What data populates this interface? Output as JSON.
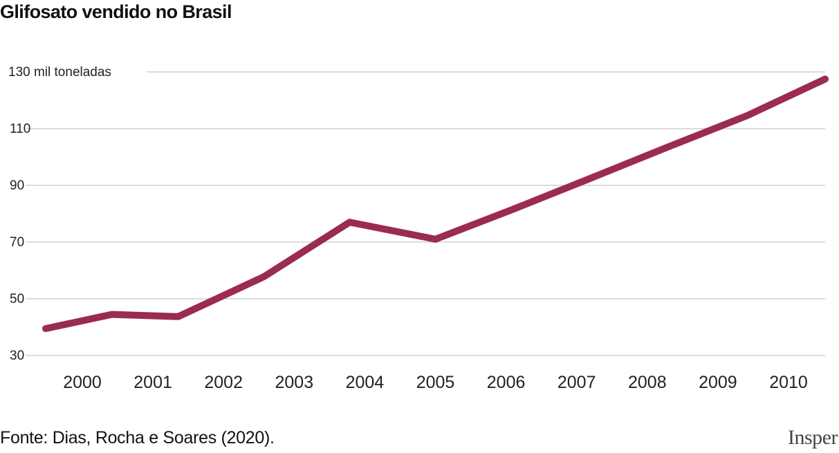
{
  "title": "Glifosato vendido no Brasil",
  "source": "Fonte: Dias, Rocha e Soares (2020).",
  "logo": "Insper",
  "colors": {
    "line": "#9b2c4f",
    "grid": "#d0d0d0",
    "text": "#222222"
  },
  "chart_data": {
    "type": "line",
    "title": "Glifosato vendido no Brasil",
    "categories": [
      "2000",
      "2001",
      "2002",
      "2003",
      "2004",
      "2005",
      "2006",
      "2007",
      "2008",
      "2009",
      "2010"
    ],
    "x_points": [
      2000,
      2000.85,
      2001.7,
      2002.8,
      2003.9,
      2005.0,
      2006.0,
      2007.0,
      2008.0,
      2009.0,
      2010.0
    ],
    "values": [
      39.5,
      44.5,
      43.7,
      57.8,
      77.0,
      71.0,
      81.6,
      92.6,
      103.7,
      114.6,
      127.5
    ],
    "series": [
      {
        "values": [
          39.5,
          44.5,
          43.7,
          57.8,
          77.0,
          71.0,
          81.6,
          92.6,
          103.7,
          114.6,
          127.5
        ]
      }
    ],
    "y_ticks": [
      "30",
      "50",
      "70",
      "90",
      "110",
      "130 mil toneladas"
    ],
    "ylabel": "mil toneladas",
    "ylim": [
      30,
      130
    ],
    "xlim": [
      2000,
      2010
    ],
    "grid": true,
    "legend": "none"
  }
}
